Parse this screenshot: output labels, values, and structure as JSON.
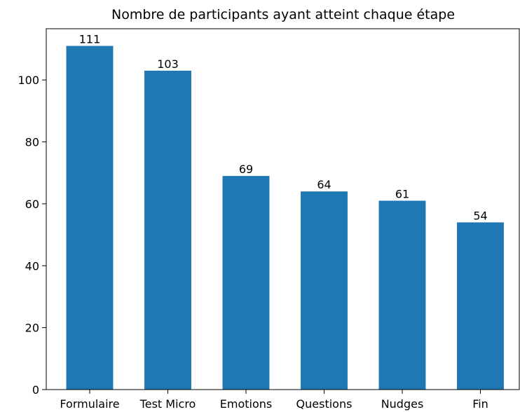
{
  "chart_data": {
    "type": "bar",
    "title": "Nombre de participants ayant atteint chaque étape",
    "categories": [
      "Formulaire",
      "Test Micro",
      "Emotions",
      "Questions",
      "Nudges",
      "Fin"
    ],
    "values": [
      111,
      103,
      69,
      64,
      61,
      54
    ],
    "color": "#1f77b4",
    "ylim": [
      0,
      116.55
    ],
    "yticks": [
      0,
      20,
      40,
      60,
      80,
      100
    ],
    "grid": false
  }
}
